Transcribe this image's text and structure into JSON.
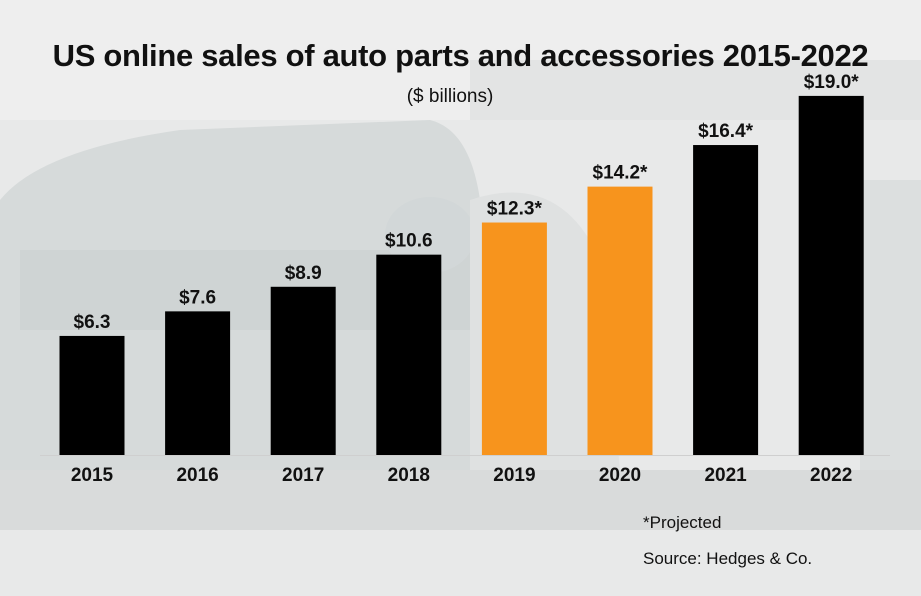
{
  "chart_data": {
    "type": "bar",
    "title": "US online sales of auto parts and accessories 2015-2022",
    "subtitle": "($ billions)",
    "xlabel": "",
    "ylabel": "",
    "ylim": [
      0,
      20
    ],
    "grid": false,
    "categories": [
      "2015",
      "2016",
      "2017",
      "2018",
      "2019",
      "2020",
      "2021",
      "2022"
    ],
    "values": [
      6.3,
      7.6,
      8.9,
      10.6,
      12.3,
      14.2,
      16.4,
      19.0
    ],
    "data_labels": [
      "$6.3",
      "$7.6",
      "$8.9",
      "$10.6",
      "$12.3*",
      "$14.2*",
      "$16.4*",
      "$19.0*"
    ],
    "bar_colors": [
      "#000000",
      "#000000",
      "#000000",
      "#000000",
      "#f7941d",
      "#f7941d",
      "#000000",
      "#000000"
    ],
    "footnote": "*Projected",
    "source": "Source: Hedges & Co."
  }
}
